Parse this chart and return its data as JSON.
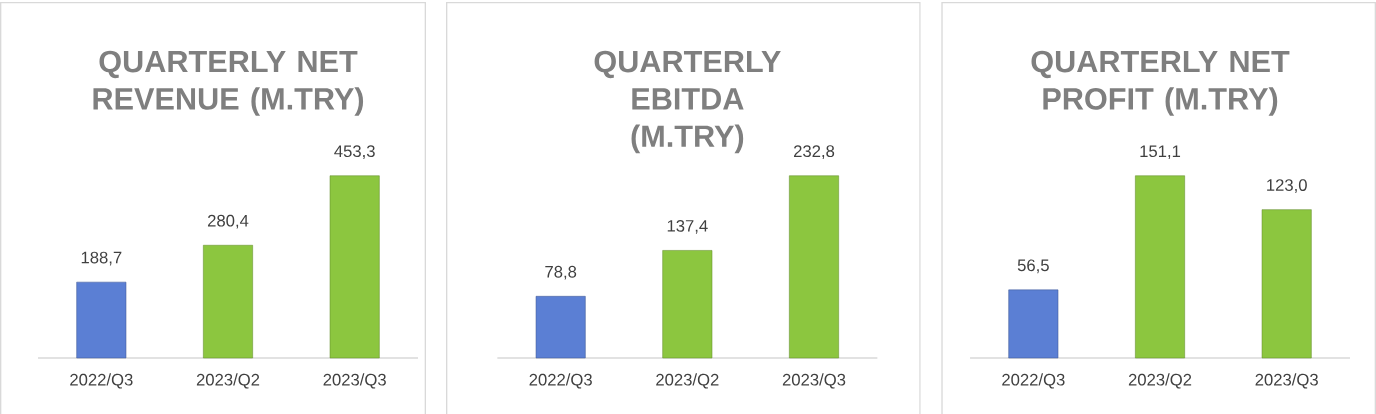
{
  "chart_data": [
    {
      "type": "bar",
      "title": "QUARTERLY NET REVENUE (M.TRY)",
      "categories": [
        "2022/Q3",
        "2023/Q2",
        "2023/Q3"
      ],
      "values": [
        188.7,
        280.4,
        453.3
      ],
      "value_labels": [
        "188,7",
        "280,4",
        "453,3"
      ],
      "colors": [
        "#5b7fd4",
        "#8cc63f",
        "#8cc63f"
      ]
    },
    {
      "type": "bar",
      "title": "QUARTERLY EBITDA (M.TRY)",
      "categories": [
        "2022/Q3",
        "2023/Q2",
        "2023/Q3"
      ],
      "values": [
        78.8,
        137.4,
        232.8
      ],
      "value_labels": [
        "78,8",
        "137,4",
        "232,8"
      ],
      "colors": [
        "#5b7fd4",
        "#8cc63f",
        "#8cc63f"
      ]
    },
    {
      "type": "bar",
      "title": "QUARTERLY NET PROFIT (M.TRY)",
      "categories": [
        "2022/Q3",
        "2023/Q2",
        "2023/Q3"
      ],
      "values": [
        56.5,
        151.1,
        123.0
      ],
      "value_labels": [
        "56,5",
        "151,1",
        "123,0"
      ],
      "colors": [
        "#5b7fd4",
        "#8cc63f",
        "#8cc63f"
      ]
    }
  ]
}
